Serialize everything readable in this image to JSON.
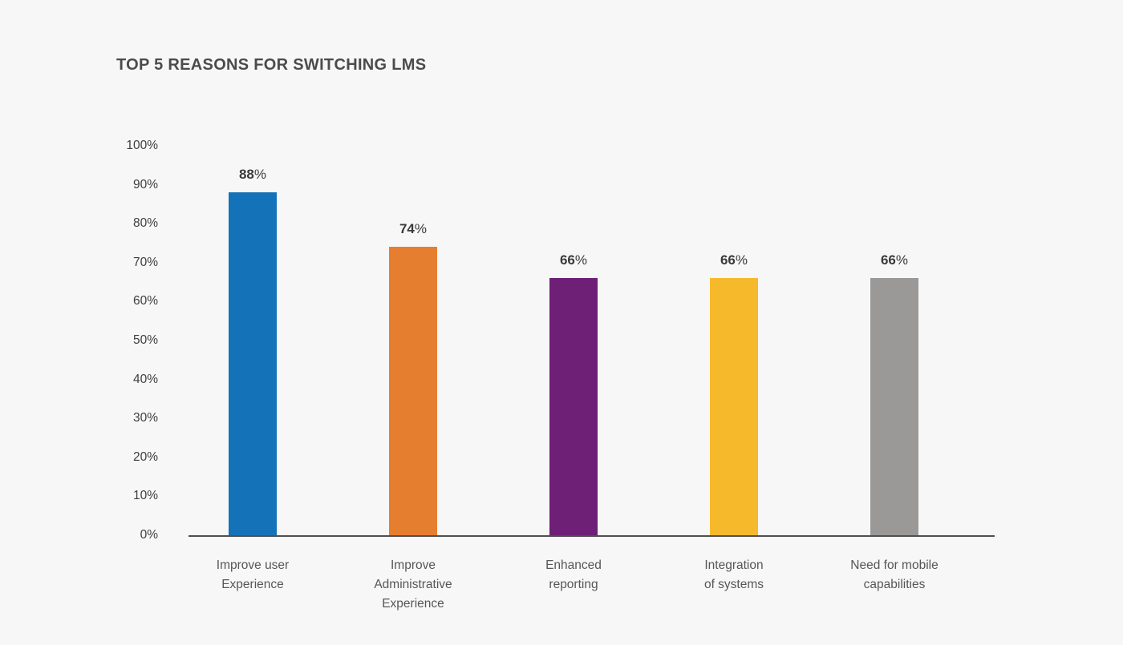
{
  "chart_data": {
    "type": "bar",
    "title": "TOP 5 REASONS FOR SWITCHING LMS",
    "categories": [
      "Improve user\nExperience",
      "Improve\nAdministrative\nExperience",
      "Enhanced\nreporting",
      "Integration\nof systems",
      "Need for mobile\ncapabilities"
    ],
    "values": [
      88,
      74,
      66,
      66,
      66
    ],
    "value_unit": "%",
    "data_labels": [
      "88%",
      "74%",
      "66%",
      "66%",
      "66%"
    ],
    "bar_colors": [
      "#1473b8",
      "#e67e30",
      "#6e2076",
      "#f7b92c",
      "#9a9998"
    ],
    "xlabel": "",
    "ylabel": "",
    "ylim": [
      0,
      100
    ],
    "ytick_step": 10,
    "ytick_labels": [
      "100%",
      "90%",
      "80%",
      "70%",
      "60%",
      "50%",
      "40%",
      "30%",
      "20%",
      "10%",
      "0%"
    ],
    "grid": false,
    "legend": "none",
    "background_color": "#f7f7f7",
    "axis_color": "#4f4f51"
  }
}
